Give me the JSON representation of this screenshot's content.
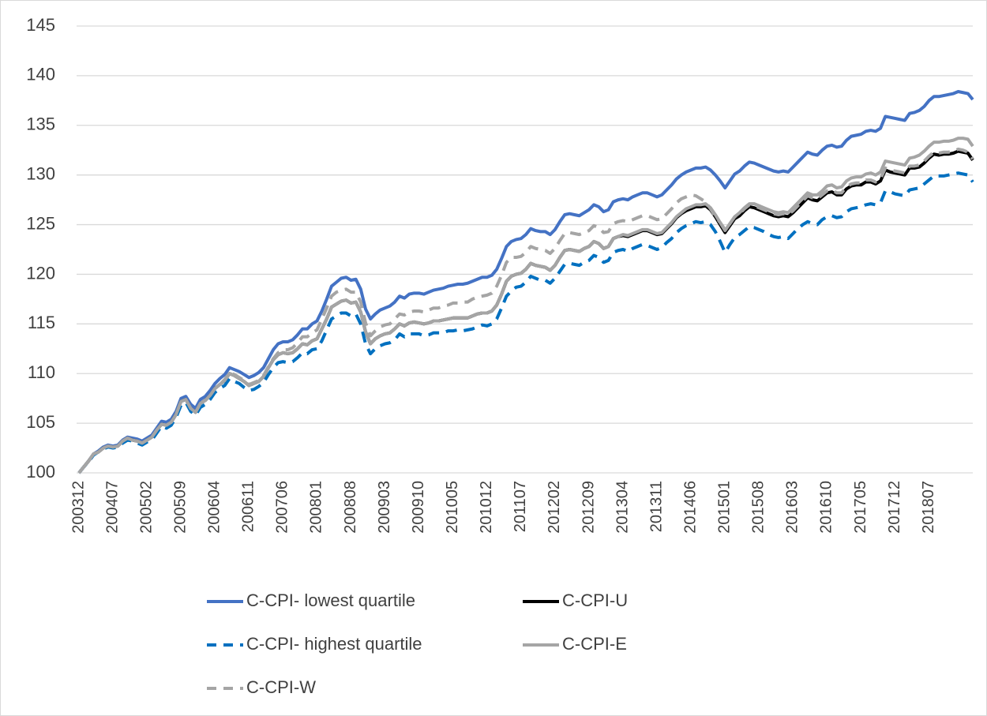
{
  "chart_data": {
    "type": "line",
    "categories": [
      "200312",
      null,
      null,
      null,
      null,
      null,
      null,
      "200407",
      null,
      null,
      null,
      null,
      null,
      null,
      "200502",
      null,
      null,
      null,
      null,
      null,
      null,
      "200509",
      null,
      null,
      null,
      null,
      null,
      null,
      "200604",
      null,
      null,
      null,
      null,
      null,
      null,
      "200611",
      null,
      null,
      null,
      null,
      null,
      null,
      "200706",
      null,
      null,
      null,
      null,
      null,
      null,
      "200801",
      null,
      null,
      null,
      null,
      null,
      null,
      "200808",
      null,
      null,
      null,
      null,
      null,
      null,
      "200903",
      null,
      null,
      null,
      null,
      null,
      null,
      "200910",
      null,
      null,
      null,
      null,
      null,
      null,
      "201005",
      null,
      null,
      null,
      null,
      null,
      null,
      "201012",
      null,
      null,
      null,
      null,
      null,
      null,
      "201107",
      null,
      null,
      null,
      null,
      null,
      null,
      "201202",
      null,
      null,
      null,
      null,
      null,
      null,
      "201209",
      null,
      null,
      null,
      null,
      null,
      null,
      "201304",
      null,
      null,
      null,
      null,
      null,
      null,
      "201311",
      null,
      null,
      null,
      null,
      null,
      null,
      "201406",
      null,
      null,
      null,
      null,
      null,
      null,
      "201501",
      null,
      null,
      null,
      null,
      null,
      null,
      "201508",
      null,
      null,
      null,
      null,
      null,
      null,
      "201603",
      null,
      null,
      null,
      null,
      null,
      null,
      "201610",
      null,
      null,
      null,
      null,
      null,
      null,
      "201705",
      null,
      null,
      null,
      null,
      null,
      null,
      "201712",
      null,
      null,
      null,
      null,
      null,
      null,
      "201807",
      null,
      null,
      null,
      null,
      null,
      null,
      null,
      null,
      null
    ],
    "ylim": [
      100,
      145
    ],
    "yticks": [
      100,
      105,
      110,
      115,
      120,
      125,
      130,
      135,
      140,
      145
    ],
    "grid": true,
    "series": [
      {
        "name": "C-CPI- lowest quartile",
        "color": "#4472C4",
        "line_style": "solid",
        "values": [
          100.0,
          100.6,
          101.2,
          101.9,
          102.2,
          102.6,
          102.8,
          102.7,
          102.8,
          103.3,
          103.6,
          103.5,
          103.4,
          103.2,
          103.5,
          103.8,
          104.5,
          105.2,
          105.1,
          105.4,
          106.2,
          107.5,
          107.7,
          106.9,
          106.5,
          107.4,
          107.7,
          108.3,
          109.0,
          109.5,
          109.9,
          110.6,
          110.4,
          110.2,
          109.9,
          109.6,
          109.8,
          110.1,
          110.6,
          111.5,
          112.4,
          113.0,
          113.2,
          113.2,
          113.4,
          113.9,
          114.5,
          114.5,
          115.0,
          115.3,
          116.3,
          117.5,
          118.8,
          119.2,
          119.6,
          119.7,
          119.4,
          119.5,
          118.5,
          116.5,
          115.5,
          116.0,
          116.4,
          116.6,
          116.8,
          117.2,
          117.8,
          117.6,
          118.0,
          118.1,
          118.1,
          118.0,
          118.2,
          118.4,
          118.5,
          118.6,
          118.8,
          118.9,
          119.0,
          119.0,
          119.1,
          119.3,
          119.5,
          119.7,
          119.7,
          119.9,
          120.5,
          121.6,
          122.8,
          123.3,
          123.5,
          123.6,
          124.0,
          124.6,
          124.4,
          124.3,
          124.3,
          124.0,
          124.5,
          125.3,
          126.0,
          126.1,
          126.0,
          125.9,
          126.2,
          126.5,
          127.0,
          126.8,
          126.3,
          126.5,
          127.3,
          127.5,
          127.6,
          127.5,
          127.8,
          128.0,
          128.2,
          128.2,
          128.0,
          127.8,
          128.0,
          128.5,
          129.0,
          129.6,
          130.0,
          130.3,
          130.5,
          130.7,
          130.7,
          130.8,
          130.5,
          130.0,
          129.4,
          128.7,
          129.4,
          130.1,
          130.4,
          130.9,
          131.3,
          131.2,
          131.0,
          130.8,
          130.6,
          130.4,
          130.3,
          130.4,
          130.3,
          130.8,
          131.3,
          131.8,
          132.3,
          132.1,
          132.0,
          132.5,
          132.9,
          133.0,
          132.8,
          132.9,
          133.5,
          133.9,
          134.0,
          134.1,
          134.4,
          134.5,
          134.4,
          134.7,
          135.9,
          135.8,
          135.7,
          135.6,
          135.5,
          136.2,
          136.3,
          136.5,
          136.9,
          137.5,
          137.9,
          137.9,
          138.0,
          138.1,
          138.2,
          138.4,
          138.3,
          138.2,
          137.6
        ]
      },
      {
        "name": "C-CPI-U",
        "color": "#000000",
        "line_style": "solid",
        "values": [
          100.0,
          100.6,
          101.2,
          101.9,
          102.1,
          102.5,
          102.7,
          102.6,
          102.7,
          103.2,
          103.5,
          103.3,
          103.2,
          103.0,
          103.3,
          103.6,
          104.3,
          104.9,
          104.8,
          105.1,
          105.9,
          107.2,
          107.4,
          106.5,
          106.1,
          107.0,
          107.3,
          107.8,
          108.5,
          108.9,
          109.3,
          110.0,
          109.8,
          109.5,
          109.2,
          108.8,
          109.0,
          109.2,
          109.7,
          110.6,
          111.4,
          111.9,
          112.1,
          112.0,
          112.1,
          112.5,
          113.0,
          112.9,
          113.3,
          113.5,
          114.5,
          115.5,
          116.7,
          117.0,
          117.3,
          117.4,
          117.1,
          117.2,
          116.2,
          114.2,
          113.0,
          113.5,
          113.8,
          114.0,
          114.1,
          114.5,
          115.0,
          114.8,
          115.1,
          115.2,
          115.1,
          115.0,
          115.1,
          115.3,
          115.3,
          115.4,
          115.5,
          115.6,
          115.6,
          115.6,
          115.6,
          115.8,
          116.0,
          116.1,
          116.1,
          116.3,
          116.9,
          118.0,
          119.3,
          119.8,
          120.0,
          120.1,
          120.5,
          121.1,
          120.9,
          120.8,
          120.7,
          120.4,
          120.9,
          121.7,
          122.4,
          122.5,
          122.4,
          122.3,
          122.6,
          122.8,
          123.3,
          123.1,
          122.6,
          122.8,
          123.6,
          123.8,
          123.9,
          123.8,
          124.0,
          124.2,
          124.4,
          124.4,
          124.2,
          124.0,
          124.1,
          124.6,
          125.1,
          125.7,
          126.1,
          126.4,
          126.6,
          126.8,
          126.8,
          126.9,
          126.5,
          125.8,
          125.0,
          124.2,
          124.9,
          125.6,
          125.9,
          126.4,
          126.8,
          126.7,
          126.5,
          126.3,
          126.1,
          125.9,
          125.8,
          125.9,
          125.8,
          126.2,
          126.7,
          127.2,
          127.7,
          127.5,
          127.4,
          127.8,
          128.2,
          128.3,
          128.0,
          128.0,
          128.6,
          128.9,
          129.0,
          129.0,
          129.3,
          129.3,
          129.1,
          129.4,
          130.5,
          130.3,
          130.2,
          130.1,
          130.0,
          130.7,
          130.7,
          130.8,
          131.2,
          131.7,
          132.1,
          132.0,
          132.1,
          132.1,
          132.2,
          132.4,
          132.3,
          132.2,
          131.5
        ]
      },
      {
        "name": "C-CPI- highest quartile",
        "color": "#0070C0",
        "line_style": "dashed",
        "values": [
          100.0,
          100.6,
          101.1,
          101.8,
          102.1,
          102.4,
          102.6,
          102.5,
          102.6,
          103.0,
          103.3,
          103.2,
          103.0,
          102.8,
          103.1,
          103.3,
          104.0,
          104.7,
          104.5,
          104.8,
          105.6,
          106.8,
          107.1,
          106.2,
          105.8,
          106.6,
          106.9,
          107.4,
          108.1,
          108.5,
          108.8,
          109.5,
          109.2,
          109.0,
          108.6,
          108.3,
          108.4,
          108.7,
          109.1,
          109.9,
          110.6,
          111.1,
          111.2,
          111.1,
          111.2,
          111.6,
          112.1,
          112.0,
          112.4,
          112.5,
          113.3,
          114.4,
          115.5,
          115.8,
          116.1,
          116.1,
          115.8,
          116.0,
          115.0,
          113.0,
          112.0,
          112.5,
          112.8,
          113.0,
          113.1,
          113.4,
          114.0,
          113.7,
          114.0,
          114.0,
          114.0,
          113.8,
          113.9,
          114.1,
          114.1,
          114.1,
          114.3,
          114.3,
          114.4,
          114.3,
          114.4,
          114.5,
          114.7,
          114.9,
          114.8,
          115.0,
          115.5,
          116.6,
          117.8,
          118.3,
          118.7,
          118.8,
          119.2,
          119.8,
          119.6,
          119.4,
          119.4,
          119.1,
          119.6,
          120.3,
          121.0,
          121.1,
          121.0,
          120.9,
          121.2,
          121.4,
          121.9,
          121.7,
          121.2,
          121.4,
          122.2,
          122.4,
          122.5,
          122.3,
          122.6,
          122.8,
          123.0,
          122.9,
          122.7,
          122.5,
          122.7,
          123.2,
          123.6,
          124.2,
          124.6,
          124.9,
          125.1,
          125.3,
          125.2,
          125.3,
          125.0,
          124.3,
          123.3,
          122.2,
          123.0,
          123.7,
          124.0,
          124.4,
          124.8,
          124.7,
          124.5,
          124.3,
          124.0,
          123.8,
          123.7,
          123.8,
          123.6,
          124.1,
          124.6,
          125.0,
          125.3,
          125.1,
          125.0,
          125.5,
          125.8,
          125.9,
          125.7,
          125.8,
          126.3,
          126.6,
          126.7,
          126.8,
          127.0,
          127.1,
          127.0,
          127.2,
          128.4,
          128.3,
          128.1,
          128.0,
          127.9,
          128.5,
          128.6,
          128.7,
          129.1,
          129.5,
          129.9,
          129.9,
          129.9,
          130.0,
          130.1,
          130.2,
          130.1,
          130.0,
          129.3
        ]
      },
      {
        "name": "C-CPI-E",
        "color": "#A5A5A5",
        "line_style": "solid",
        "values": [
          100.0,
          100.6,
          101.2,
          101.9,
          102.1,
          102.5,
          102.7,
          102.6,
          102.7,
          103.2,
          103.5,
          103.3,
          103.2,
          103.0,
          103.3,
          103.6,
          104.3,
          104.9,
          104.8,
          105.1,
          105.9,
          107.2,
          107.4,
          106.5,
          106.1,
          107.0,
          107.3,
          107.8,
          108.5,
          108.9,
          109.3,
          110.0,
          109.8,
          109.5,
          109.2,
          108.8,
          109.0,
          109.2,
          109.7,
          110.6,
          111.4,
          111.9,
          112.1,
          112.0,
          112.1,
          112.5,
          113.0,
          112.9,
          113.3,
          113.5,
          114.5,
          115.5,
          116.7,
          117.0,
          117.3,
          117.4,
          117.1,
          117.2,
          116.2,
          114.2,
          113.0,
          113.5,
          113.8,
          114.0,
          114.1,
          114.5,
          115.0,
          114.8,
          115.1,
          115.2,
          115.1,
          115.0,
          115.1,
          115.3,
          115.3,
          115.4,
          115.5,
          115.6,
          115.6,
          115.6,
          115.6,
          115.8,
          116.0,
          116.1,
          116.1,
          116.3,
          116.9,
          118.0,
          119.3,
          119.8,
          120.0,
          120.1,
          120.5,
          121.1,
          120.9,
          120.8,
          120.7,
          120.4,
          120.9,
          121.7,
          122.4,
          122.5,
          122.4,
          122.3,
          122.6,
          122.8,
          123.3,
          123.1,
          122.6,
          122.8,
          123.6,
          123.8,
          124.0,
          123.9,
          124.1,
          124.3,
          124.5,
          124.5,
          124.3,
          124.1,
          124.2,
          124.7,
          125.2,
          125.8,
          126.2,
          126.6,
          126.8,
          127.0,
          127.0,
          127.1,
          126.7,
          126.0,
          125.2,
          124.4,
          125.1,
          125.8,
          126.2,
          126.7,
          127.1,
          127.1,
          126.9,
          126.7,
          126.5,
          126.3,
          126.2,
          126.3,
          126.2,
          126.7,
          127.2,
          127.7,
          128.2,
          128.0,
          128.0,
          128.4,
          128.9,
          129.0,
          128.7,
          128.8,
          129.4,
          129.7,
          129.8,
          129.8,
          130.1,
          130.2,
          130.0,
          130.3,
          131.4,
          131.3,
          131.2,
          131.1,
          131.0,
          131.7,
          131.8,
          132.0,
          132.4,
          132.9,
          133.3,
          133.3,
          133.4,
          133.4,
          133.5,
          133.7,
          133.7,
          133.6,
          132.9
        ]
      },
      {
        "name": "C-CPI-W",
        "color": "#A5A5A5",
        "line_style": "dashed",
        "values": [
          100.0,
          100.6,
          101.2,
          101.9,
          102.1,
          102.5,
          102.7,
          102.6,
          102.7,
          103.2,
          103.5,
          103.3,
          103.2,
          103.0,
          103.3,
          103.6,
          104.3,
          104.9,
          104.8,
          105.1,
          105.9,
          107.2,
          107.4,
          106.5,
          106.1,
          107.0,
          107.3,
          107.8,
          108.5,
          108.9,
          109.4,
          110.1,
          109.9,
          109.6,
          109.3,
          108.9,
          109.1,
          109.3,
          109.8,
          110.7,
          111.5,
          112.1,
          112.4,
          112.4,
          112.6,
          113.1,
          113.7,
          113.7,
          114.1,
          114.4,
          115.5,
          116.6,
          117.8,
          118.2,
          118.4,
          118.5,
          118.2,
          118.2,
          117.2,
          115.1,
          113.8,
          114.3,
          114.7,
          114.9,
          115.0,
          115.5,
          116.0,
          115.9,
          116.2,
          116.3,
          116.3,
          116.2,
          116.4,
          116.6,
          116.6,
          116.8,
          116.9,
          117.1,
          117.1,
          117.2,
          117.2,
          117.5,
          117.7,
          117.8,
          117.9,
          118.1,
          118.8,
          119.9,
          121.2,
          121.7,
          121.7,
          121.8,
          122.2,
          122.8,
          122.6,
          122.5,
          122.4,
          122.1,
          122.6,
          123.4,
          124.1,
          124.2,
          124.1,
          124.0,
          124.2,
          124.4,
          124.9,
          124.7,
          124.2,
          124.3,
          125.1,
          125.3,
          125.4,
          125.3,
          125.5,
          125.7,
          125.9,
          125.9,
          125.7,
          125.5,
          125.6,
          126.1,
          126.6,
          127.2,
          127.6,
          127.8,
          128.0,
          127.9,
          127.6,
          127.3,
          126.6,
          125.8,
          125.2,
          124.5,
          125.1,
          125.8,
          126.1,
          126.6,
          127.0,
          126.9,
          126.7,
          126.5,
          126.3,
          126.1,
          126.0,
          126.1,
          126.0,
          126.4,
          126.9,
          127.4,
          127.9,
          127.7,
          127.6,
          128.0,
          128.4,
          128.5,
          128.2,
          128.2,
          128.8,
          129.1,
          129.2,
          129.2,
          129.5,
          129.5,
          129.3,
          129.6,
          130.7,
          130.5,
          130.4,
          130.3,
          130.2,
          130.9,
          130.9,
          131.0,
          131.4,
          131.9,
          132.3,
          132.2,
          132.3,
          132.3,
          132.4,
          132.6,
          132.5,
          132.3,
          131.6
        ]
      }
    ]
  }
}
